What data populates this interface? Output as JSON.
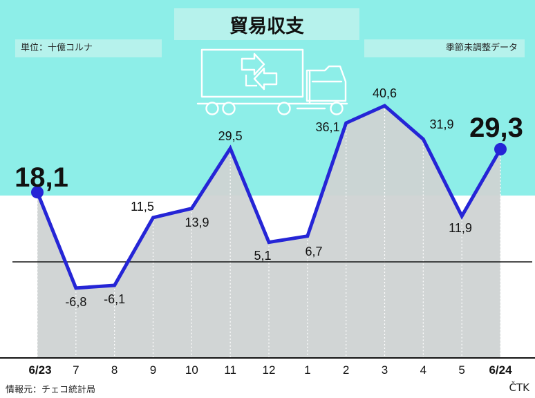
{
  "header": {
    "title": "貿易収支",
    "unit": "単位：十億コルナ",
    "adjustment": "季節未調整データ"
  },
  "footer": {
    "source": "情報元：チェコ統計局",
    "agency": "ČTK"
  },
  "icons": [
    "truck-icon",
    "exchange-arrows-icon"
  ],
  "colors": {
    "top_background": "#8deee8",
    "label_box": "#b6f2ec",
    "line": "#2525d6",
    "area": "#cfd3d3",
    "text": "#111111"
  },
  "chart_data": {
    "type": "line",
    "title": "貿易収支",
    "categories": [
      "6/23",
      "7",
      "8",
      "9",
      "10",
      "11",
      "12",
      "1",
      "2",
      "3",
      "4",
      "5",
      "6/24"
    ],
    "values": [
      18.1,
      -6.8,
      -6.1,
      11.5,
      13.9,
      29.5,
      5.1,
      6.7,
      36.1,
      40.6,
      31.9,
      11.9,
      29.3
    ],
    "value_labels": [
      "18,1",
      "-6,8",
      "-6,1",
      "11,5",
      "13,9",
      "29,5",
      "5,1",
      "6,7",
      "36,1",
      "40,6",
      "31,9",
      "11,9",
      "29,3"
    ],
    "emphasized": [
      "6/23",
      "6/24"
    ],
    "ylim": [
      -15,
      47
    ],
    "zero_line": true,
    "grid": "dotted vertical lines at each category",
    "legend": "none"
  }
}
